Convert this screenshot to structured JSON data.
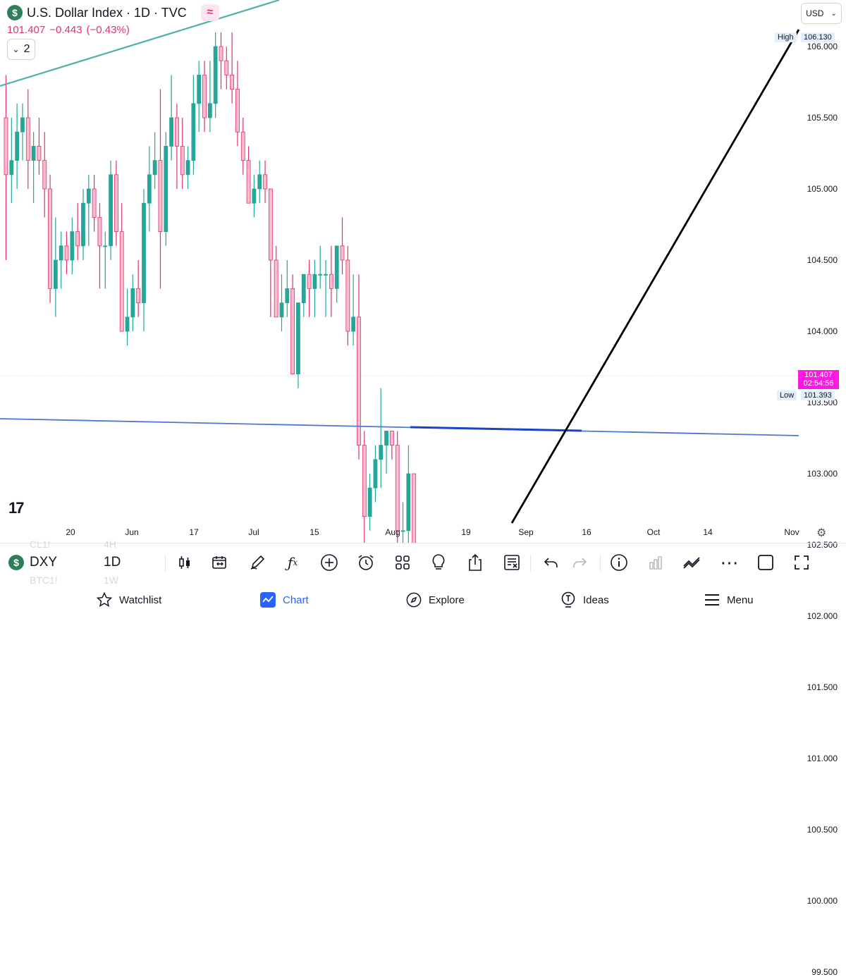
{
  "header": {
    "symbol_badge": "$",
    "title": "U.S. Dollar Index · 1D · TVC",
    "wave_badge": "≈",
    "price": "101.407",
    "change": "−0.443",
    "change_pct": "(−0.43%)",
    "layers_count": "2",
    "currency": "USD"
  },
  "price_axis": {
    "labels": [
      "106.000",
      "105.500",
      "105.000",
      "104.500",
      "104.000",
      "103.500",
      "103.000",
      "102.500",
      "102.000",
      "101.500",
      "101.000",
      "100.500",
      "100.000",
      "99.500"
    ],
    "high_label": "High",
    "high_value": "106.130",
    "low_label": "Low",
    "low_value": "101.393",
    "last_price": "101.407",
    "countdown": "02:54:56"
  },
  "time_axis": {
    "labels": [
      "20",
      "Jun",
      "17",
      "Jul",
      "15",
      "Aug",
      "19",
      "Sep",
      "16",
      "Oct",
      "14",
      "Nov"
    ]
  },
  "colors": {
    "up": "#26a69a",
    "down": "#f8bbd0",
    "down_border": "#e0336e",
    "trend_teal": "#4fb0a6",
    "support_blue": "#4a78d4",
    "accent": "#2962ff",
    "last_price_tag": "#ff18e4"
  },
  "chart_data": {
    "type": "candlestick",
    "timeframe": "1D",
    "ylim": [
      99.3,
      106.3
    ],
    "candles": [
      {
        "o": 105.5,
        "h": 105.8,
        "l": 104.5,
        "c": 105.1
      },
      {
        "o": 105.1,
        "h": 105.5,
        "l": 104.9,
        "c": 105.2
      },
      {
        "o": 105.2,
        "h": 105.6,
        "l": 105.0,
        "c": 105.4
      },
      {
        "o": 105.4,
        "h": 105.6,
        "l": 105.2,
        "c": 105.5
      },
      {
        "o": 105.5,
        "h": 105.7,
        "l": 105.0,
        "c": 105.2
      },
      {
        "o": 105.2,
        "h": 105.4,
        "l": 104.9,
        "c": 105.3
      },
      {
        "o": 105.3,
        "h": 105.5,
        "l": 105.1,
        "c": 105.2
      },
      {
        "o": 105.2,
        "h": 105.4,
        "l": 104.8,
        "c": 105.0
      },
      {
        "o": 105.0,
        "h": 105.1,
        "l": 104.2,
        "c": 104.3
      },
      {
        "o": 104.3,
        "h": 104.8,
        "l": 104.1,
        "c": 104.5
      },
      {
        "o": 104.5,
        "h": 104.7,
        "l": 104.3,
        "c": 104.6
      },
      {
        "o": 104.6,
        "h": 104.7,
        "l": 104.4,
        "c": 104.5
      },
      {
        "o": 104.5,
        "h": 104.8,
        "l": 104.4,
        "c": 104.7
      },
      {
        "o": 104.7,
        "h": 104.9,
        "l": 104.5,
        "c": 104.6
      },
      {
        "o": 104.6,
        "h": 105.0,
        "l": 104.5,
        "c": 104.9
      },
      {
        "o": 104.9,
        "h": 105.1,
        "l": 104.6,
        "c": 105.0
      },
      {
        "o": 105.0,
        "h": 105.1,
        "l": 104.7,
        "c": 104.8
      },
      {
        "o": 104.8,
        "h": 104.9,
        "l": 104.3,
        "c": 104.6
      },
      {
        "o": 104.6,
        "h": 104.7,
        "l": 104.3,
        "c": 104.6
      },
      {
        "o": 104.6,
        "h": 105.2,
        "l": 104.5,
        "c": 105.1
      },
      {
        "o": 105.1,
        "h": 105.2,
        "l": 104.6,
        "c": 104.7
      },
      {
        "o": 104.7,
        "h": 104.9,
        "l": 104.0,
        "c": 104.0
      },
      {
        "o": 104.0,
        "h": 104.3,
        "l": 103.9,
        "c": 104.1
      },
      {
        "o": 104.1,
        "h": 104.4,
        "l": 104.0,
        "c": 104.3
      },
      {
        "o": 104.3,
        "h": 104.5,
        "l": 104.1,
        "c": 104.2
      },
      {
        "o": 104.2,
        "h": 105.0,
        "l": 104.0,
        "c": 104.9
      },
      {
        "o": 104.9,
        "h": 105.3,
        "l": 104.7,
        "c": 105.1
      },
      {
        "o": 105.1,
        "h": 105.4,
        "l": 105.0,
        "c": 105.2
      },
      {
        "o": 105.2,
        "h": 105.7,
        "l": 104.3,
        "c": 104.7
      },
      {
        "o": 104.7,
        "h": 105.4,
        "l": 104.6,
        "c": 105.3
      },
      {
        "o": 105.3,
        "h": 105.8,
        "l": 105.2,
        "c": 105.5
      },
      {
        "o": 105.5,
        "h": 105.6,
        "l": 105.0,
        "c": 105.3
      },
      {
        "o": 105.3,
        "h": 105.5,
        "l": 105.0,
        "c": 105.1
      },
      {
        "o": 105.1,
        "h": 105.3,
        "l": 105.0,
        "c": 105.2
      },
      {
        "o": 105.2,
        "h": 105.8,
        "l": 105.1,
        "c": 105.6
      },
      {
        "o": 105.6,
        "h": 105.9,
        "l": 105.4,
        "c": 105.8
      },
      {
        "o": 105.8,
        "h": 105.9,
        "l": 105.4,
        "c": 105.5
      },
      {
        "o": 105.5,
        "h": 105.9,
        "l": 105.4,
        "c": 105.6
      },
      {
        "o": 105.6,
        "h": 106.1,
        "l": 105.5,
        "c": 106.0
      },
      {
        "o": 106.0,
        "h": 106.1,
        "l": 105.7,
        "c": 105.9
      },
      {
        "o": 105.9,
        "h": 106.0,
        "l": 105.7,
        "c": 105.8
      },
      {
        "o": 105.8,
        "h": 106.1,
        "l": 105.6,
        "c": 105.7
      },
      {
        "o": 105.7,
        "h": 105.9,
        "l": 105.3,
        "c": 105.4
      },
      {
        "o": 105.4,
        "h": 105.5,
        "l": 105.1,
        "c": 105.2
      },
      {
        "o": 105.2,
        "h": 105.3,
        "l": 104.9,
        "c": 104.9
      },
      {
        "o": 104.9,
        "h": 105.1,
        "l": 104.8,
        "c": 105.0
      },
      {
        "o": 105.0,
        "h": 105.2,
        "l": 104.9,
        "c": 105.1
      },
      {
        "o": 105.1,
        "h": 105.2,
        "l": 104.9,
        "c": 105.0
      },
      {
        "o": 105.0,
        "h": 105.0,
        "l": 104.1,
        "c": 104.5
      },
      {
        "o": 104.5,
        "h": 104.6,
        "l": 104.1,
        "c": 104.1
      },
      {
        "o": 104.1,
        "h": 104.4,
        "l": 104.0,
        "c": 104.2
      },
      {
        "o": 104.2,
        "h": 104.5,
        "l": 104.1,
        "c": 104.3
      },
      {
        "o": 104.3,
        "h": 104.4,
        "l": 103.7,
        "c": 103.7
      },
      {
        "o": 103.7,
        "h": 104.2,
        "l": 103.6,
        "c": 104.2
      },
      {
        "o": 104.2,
        "h": 104.4,
        "l": 104.1,
        "c": 104.4
      },
      {
        "o": 104.4,
        "h": 104.5,
        "l": 104.1,
        "c": 104.3
      },
      {
        "o": 104.3,
        "h": 104.5,
        "l": 104.1,
        "c": 104.4
      },
      {
        "o": 104.4,
        "h": 104.6,
        "l": 104.3,
        "c": 104.4
      },
      {
        "o": 104.4,
        "h": 104.5,
        "l": 104.1,
        "c": 104.4
      },
      {
        "o": 104.4,
        "h": 104.6,
        "l": 104.1,
        "c": 104.3
      },
      {
        "o": 104.3,
        "h": 104.6,
        "l": 104.2,
        "c": 104.6
      },
      {
        "o": 104.6,
        "h": 104.8,
        "l": 104.4,
        "c": 104.5
      },
      {
        "o": 104.5,
        "h": 104.6,
        "l": 103.9,
        "c": 104.0
      },
      {
        "o": 104.0,
        "h": 104.4,
        "l": 103.9,
        "c": 104.1
      },
      {
        "o": 104.1,
        "h": 104.4,
        "l": 103.1,
        "c": 103.2
      },
      {
        "o": 103.2,
        "h": 103.3,
        "l": 102.2,
        "c": 102.7
      },
      {
        "o": 102.7,
        "h": 103.0,
        "l": 102.6,
        "c": 102.9
      },
      {
        "o": 102.9,
        "h": 103.2,
        "l": 102.8,
        "c": 103.1
      },
      {
        "o": 103.1,
        "h": 103.6,
        "l": 102.9,
        "c": 103.2
      },
      {
        "o": 103.2,
        "h": 103.3,
        "l": 103.0,
        "c": 103.3
      },
      {
        "o": 103.3,
        "h": 103.3,
        "l": 103.1,
        "c": 103.2
      },
      {
        "o": 103.2,
        "h": 103.3,
        "l": 102.5,
        "c": 102.6
      },
      {
        "o": 102.6,
        "h": 102.8,
        "l": 102.3,
        "c": 102.6
      },
      {
        "o": 102.6,
        "h": 103.2,
        "l": 102.5,
        "c": 103.0
      },
      {
        "o": 103.0,
        "h": 103.0,
        "l": 102.4,
        "c": 102.4
      },
      {
        "o": 102.4,
        "h": 102.5,
        "l": 101.8,
        "c": 101.8
      },
      {
        "o": 101.8,
        "h": 102.0,
        "l": 101.39,
        "c": 101.41
      }
    ],
    "drawings": [
      {
        "type": "trendline",
        "color": "teal"
      },
      {
        "type": "horizontal_support",
        "color": "blue"
      },
      {
        "type": "trendline",
        "color": "black"
      }
    ]
  },
  "toolbar": {
    "symbol": "DXY",
    "interval": "1D",
    "ghost_symbols": [
      "CL1!",
      "BTC1!"
    ],
    "ghost_intervals": [
      "4H",
      "1W"
    ],
    "icons": [
      "candles-icon",
      "calendar-replay-icon",
      "brush-icon",
      "fx-icon",
      "plus-circle-icon",
      "alarm-icon",
      "grid-icon",
      "lightbulb-icon",
      "share-icon",
      "text-note-icon",
      "undo-icon",
      "redo-icon",
      "info-icon",
      "bars-icon",
      "compare-icon",
      "more-icon",
      "square-icon",
      "fullscreen-icon"
    ]
  },
  "nav": {
    "items": [
      "Watchlist",
      "Chart",
      "Explore",
      "Ideas",
      "Menu"
    ]
  }
}
